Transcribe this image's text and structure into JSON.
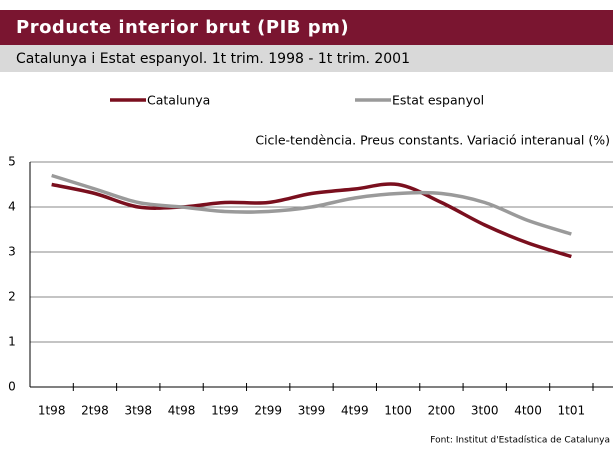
{
  "chart_data": {
    "type": "line",
    "title": "Producte interior brut (PIB pm)",
    "subtitle": "Catalunya i Estat espanyol. 1t trim. 1998 - 1t trim. 2001",
    "annotation": "Cicle-tendència. Preus constants. Variació interanual (%)",
    "source": "Font: Institut d'Estadística de Catalunya",
    "categories": [
      "1t98",
      "2t98",
      "3t98",
      "4t98",
      "1t99",
      "2t99",
      "3t99",
      "4t99",
      "1t00",
      "2t00",
      "3t00",
      "4t00",
      "1t01"
    ],
    "series": [
      {
        "name": "Catalunya",
        "color": "#7a0f1e",
        "values": [
          4.5,
          4.3,
          4.0,
          4.0,
          4.1,
          4.1,
          4.3,
          4.4,
          4.5,
          4.1,
          3.6,
          3.2,
          2.9
        ]
      },
      {
        "name": "Estat espanyol",
        "color": "#9a9a9a",
        "values": [
          4.7,
          4.4,
          4.1,
          4.0,
          3.9,
          3.9,
          4.0,
          4.2,
          4.3,
          4.3,
          4.1,
          3.7,
          3.4
        ]
      }
    ],
    "ylim": [
      0,
      5
    ],
    "yticks": [
      0,
      1,
      2,
      3,
      4,
      5
    ],
    "grid": true,
    "legend": "top"
  }
}
